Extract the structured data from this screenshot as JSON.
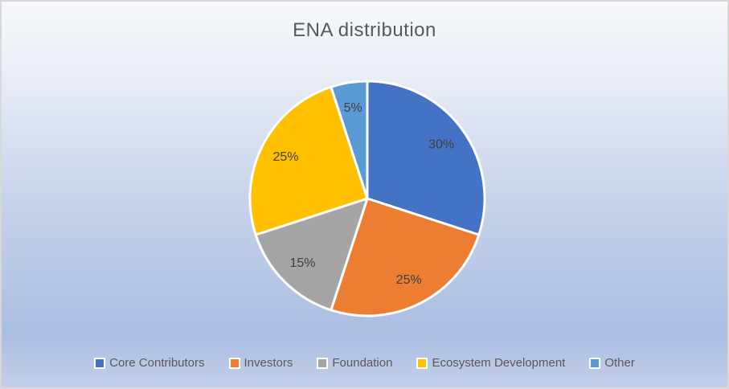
{
  "chart_data": {
    "type": "pie",
    "title": "ENA distribution",
    "categories": [
      "Core Contributors",
      "Investors",
      "Foundation",
      "Ecosystem Development",
      "Other"
    ],
    "values": [
      30,
      25,
      15,
      25,
      5
    ],
    "data_labels": [
      "30%",
      "25%",
      "15%",
      "25%",
      "5%"
    ],
    "slice_colors": [
      "#4472C4",
      "#ED7D31",
      "#A5A5A5",
      "#FFC000",
      "#5B9BD5"
    ],
    "slice_border_color": "#FFFFFF",
    "start_angle_deg": 0,
    "direction": "clockwise",
    "legend_position": "bottom",
    "title_color": "#595959",
    "data_label_color": "#404040",
    "legend_text_color": "#595959"
  }
}
